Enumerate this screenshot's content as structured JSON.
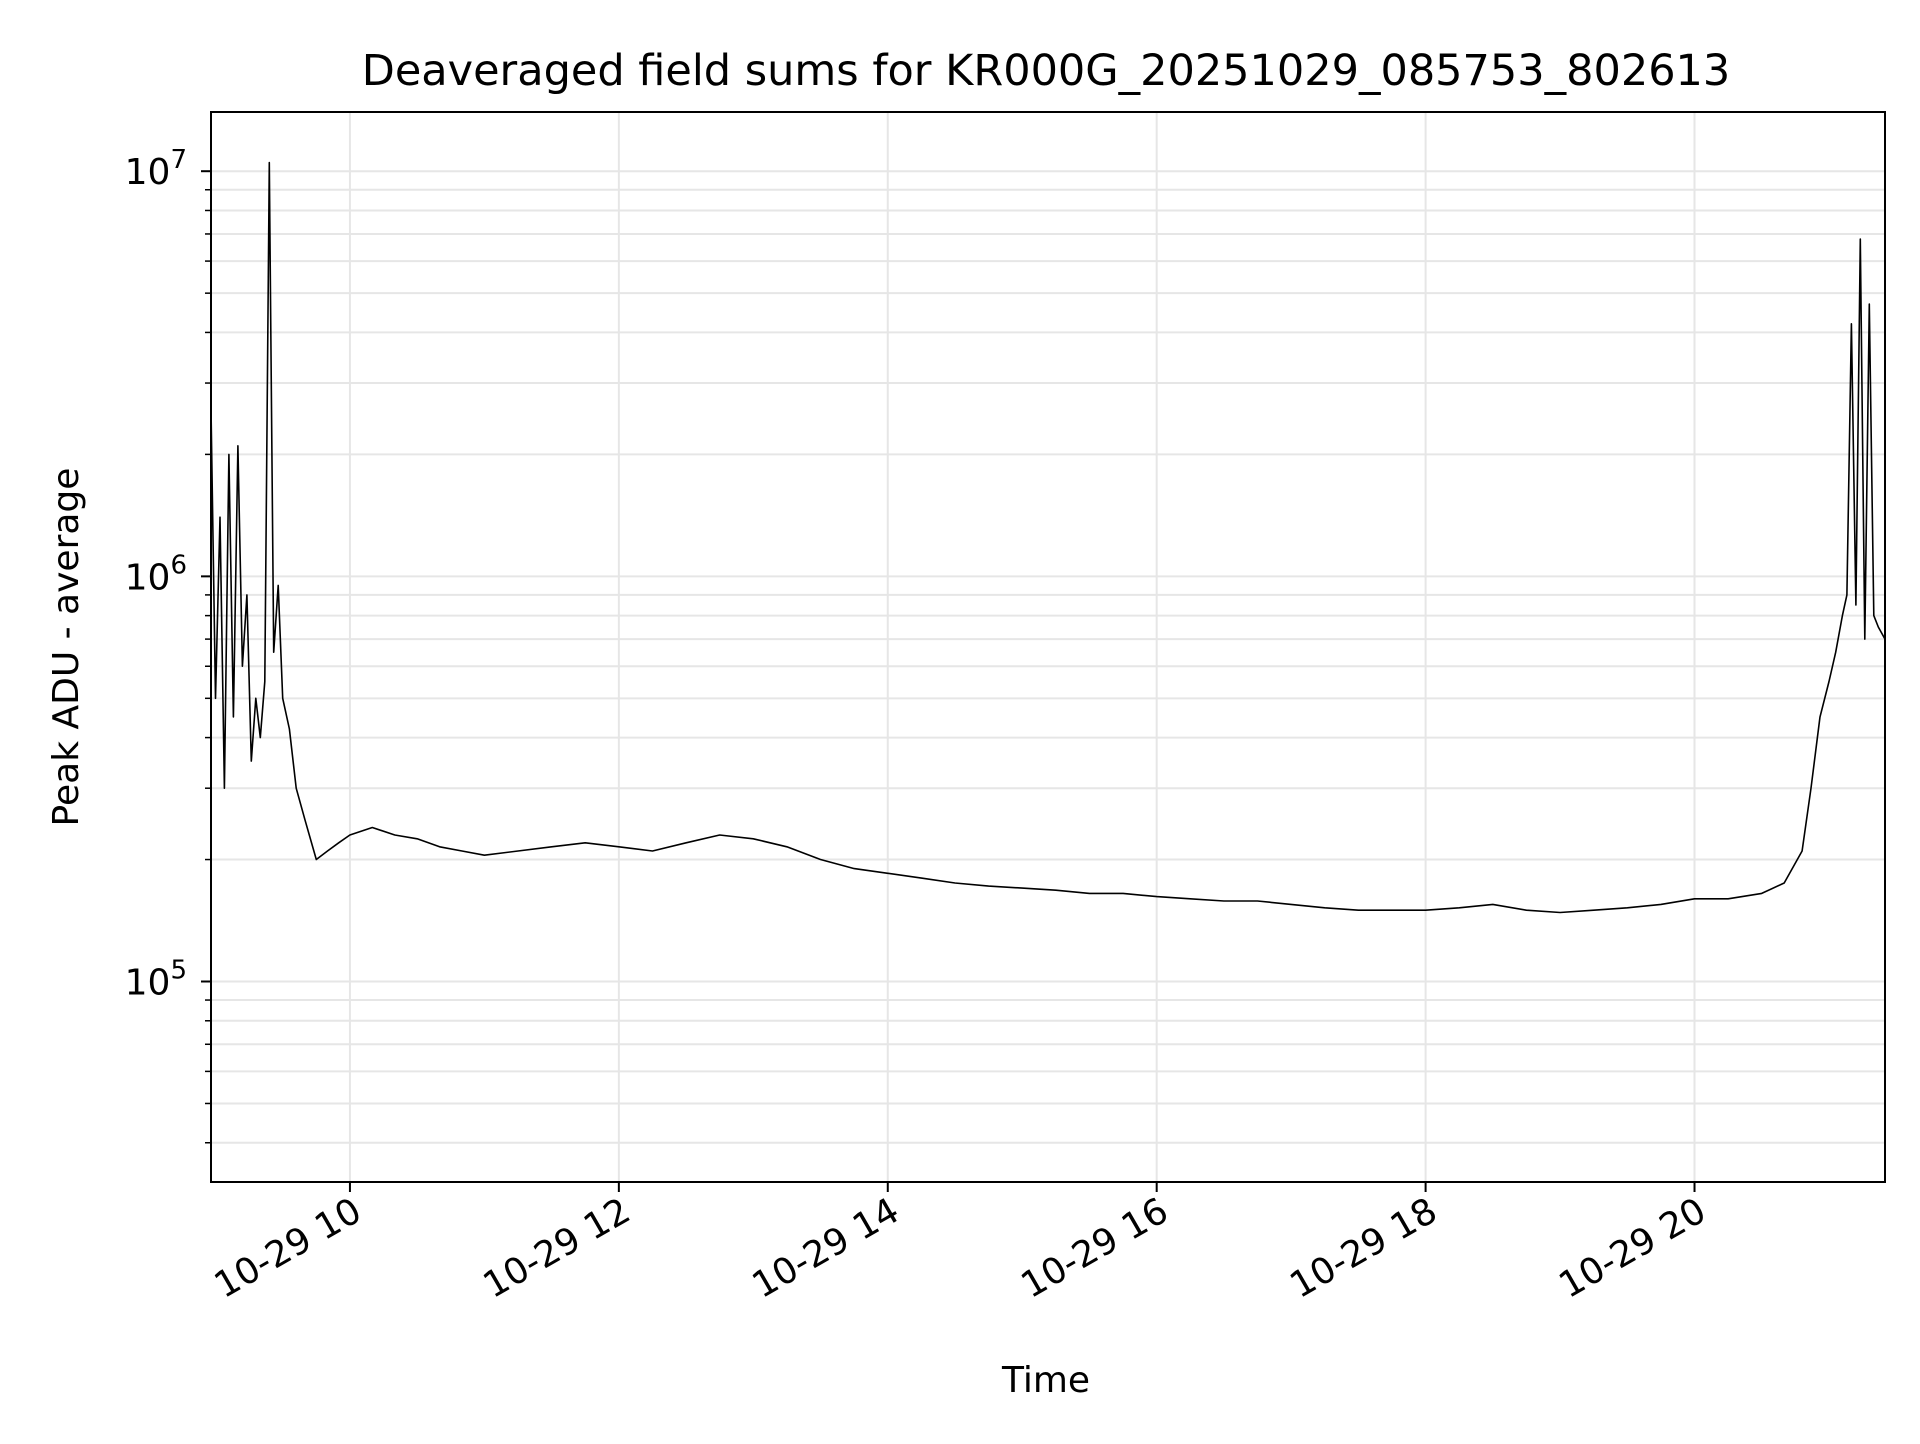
{
  "chart_data": {
    "type": "line",
    "title": "Deaveraged field sums for KR000G_20251029_085753_802613",
    "xlabel": "Time",
    "ylabel": "Peak ADU - average",
    "yscale": "log",
    "x_range": [
      "2025-10-29 08:58",
      "2025-10-29 21:25"
    ],
    "ylim": [
      32000,
      14000000
    ],
    "grid": true,
    "legend": "none",
    "line_color": "#000000",
    "x_ticks": [
      {
        "value": "2025-10-29 10:00",
        "label": "10-29 10"
      },
      {
        "value": "2025-10-29 12:00",
        "label": "10-29 12"
      },
      {
        "value": "2025-10-29 14:00",
        "label": "10-29 14"
      },
      {
        "value": "2025-10-29 16:00",
        "label": "10-29 16"
      },
      {
        "value": "2025-10-29 18:00",
        "label": "10-29 18"
      },
      {
        "value": "2025-10-29 20:00",
        "label": "10-29 20"
      }
    ],
    "y_ticks": [
      {
        "value": 100000,
        "base": "10",
        "exp": "5"
      },
      {
        "value": 1000000,
        "base": "10",
        "exp": "6"
      },
      {
        "value": 10000000,
        "base": "10",
        "exp": "7"
      }
    ],
    "series": [
      {
        "x": [
          "2025-10-29 08:58",
          "2025-10-29 09:00",
          "2025-10-29 09:02",
          "2025-10-29 09:04",
          "2025-10-29 09:06",
          "2025-10-29 09:08",
          "2025-10-29 09:10",
          "2025-10-29 09:12",
          "2025-10-29 09:14",
          "2025-10-29 09:16",
          "2025-10-29 09:18",
          "2025-10-29 09:20",
          "2025-10-29 09:22",
          "2025-10-29 09:24",
          "2025-10-29 09:26",
          "2025-10-29 09:28",
          "2025-10-29 09:30",
          "2025-10-29 09:33",
          "2025-10-29 09:36",
          "2025-10-29 09:40",
          "2025-10-29 09:45",
          "2025-10-29 09:50",
          "2025-10-29 09:55",
          "2025-10-29 10:00",
          "2025-10-29 10:10",
          "2025-10-29 10:20",
          "2025-10-29 10:30",
          "2025-10-29 10:40",
          "2025-10-29 10:50",
          "2025-10-29 11:00",
          "2025-10-29 11:15",
          "2025-10-29 11:30",
          "2025-10-29 11:45",
          "2025-10-29 12:00",
          "2025-10-29 12:15",
          "2025-10-29 12:30",
          "2025-10-29 12:45",
          "2025-10-29 13:00",
          "2025-10-29 13:15",
          "2025-10-29 13:30",
          "2025-10-29 13:45",
          "2025-10-29 14:00",
          "2025-10-29 14:15",
          "2025-10-29 14:30",
          "2025-10-29 14:45",
          "2025-10-29 15:00",
          "2025-10-29 15:15",
          "2025-10-29 15:30",
          "2025-10-29 15:45",
          "2025-10-29 16:00",
          "2025-10-29 16:15",
          "2025-10-29 16:30",
          "2025-10-29 16:45",
          "2025-10-29 17:00",
          "2025-10-29 17:15",
          "2025-10-29 17:30",
          "2025-10-29 17:45",
          "2025-10-29 18:00",
          "2025-10-29 18:15",
          "2025-10-29 18:30",
          "2025-10-29 18:45",
          "2025-10-29 19:00",
          "2025-10-29 19:15",
          "2025-10-29 19:30",
          "2025-10-29 19:45",
          "2025-10-29 20:00",
          "2025-10-29 20:15",
          "2025-10-29 20:30",
          "2025-10-29 20:40",
          "2025-10-29 20:48",
          "2025-10-29 20:52",
          "2025-10-29 20:56",
          "2025-10-29 21:00",
          "2025-10-29 21:03",
          "2025-10-29 21:06",
          "2025-10-29 21:08",
          "2025-10-29 21:10",
          "2025-10-29 21:12",
          "2025-10-29 21:14",
          "2025-10-29 21:16",
          "2025-10-29 21:18",
          "2025-10-29 21:20",
          "2025-10-29 21:22",
          "2025-10-29 21:25"
        ],
        "y": [
          2600000,
          500000,
          1400000,
          300000,
          2000000,
          450000,
          2100000,
          600000,
          900000,
          350000,
          500000,
          400000,
          550000,
          10500000,
          650000,
          950000,
          500000,
          420000,
          300000,
          250000,
          200000,
          210000,
          220000,
          230000,
          240000,
          230000,
          225000,
          215000,
          210000,
          205000,
          210000,
          215000,
          220000,
          215000,
          210000,
          220000,
          230000,
          225000,
          215000,
          200000,
          190000,
          185000,
          180000,
          175000,
          172000,
          170000,
          168000,
          165000,
          165000,
          162000,
          160000,
          158000,
          158000,
          155000,
          152000,
          150000,
          150000,
          150000,
          152000,
          155000,
          150000,
          148000,
          150000,
          152000,
          155000,
          160000,
          160000,
          165000,
          175000,
          210000,
          300000,
          450000,
          550000,
          650000,
          800000,
          900000,
          4200000,
          850000,
          6800000,
          700000,
          4700000,
          800000,
          750000,
          700000
        ]
      }
    ]
  }
}
